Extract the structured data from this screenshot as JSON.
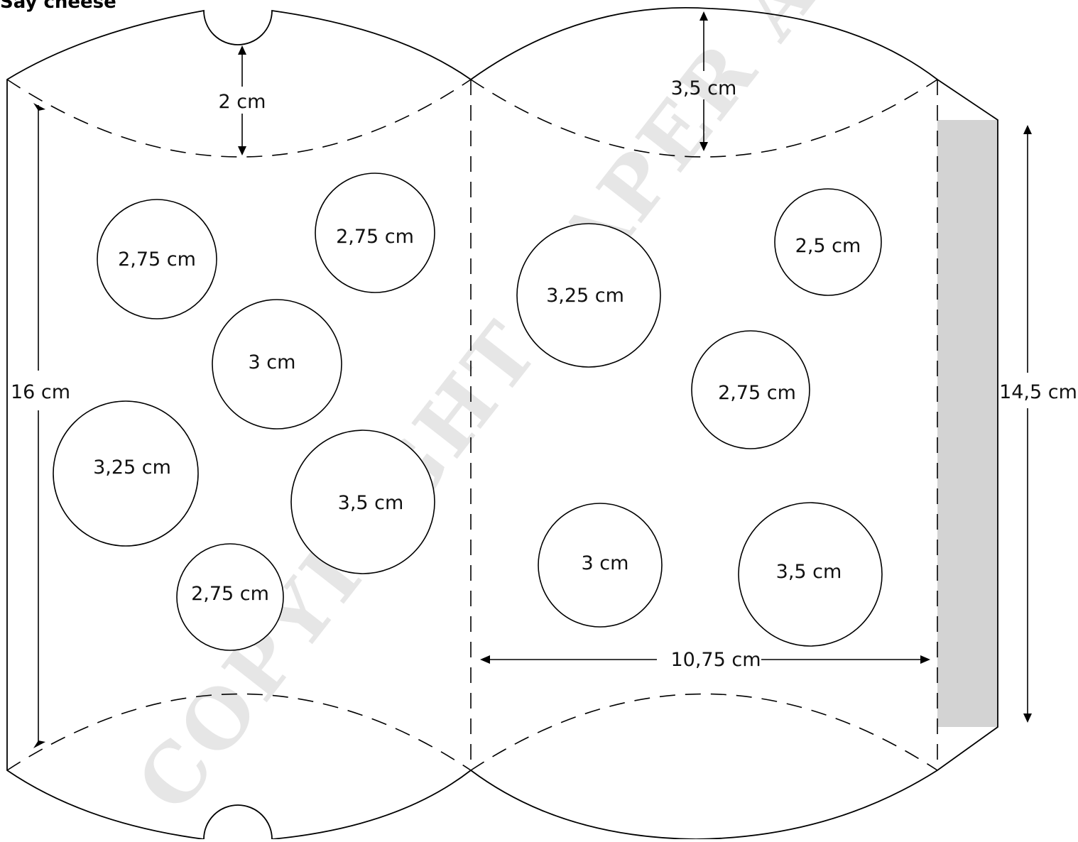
{
  "title": "Say cheese",
  "watermark": "COPYRIGHT PAPER AND PICTURES",
  "colors": {
    "glue_tab": "#d3d3d3",
    "line": "#000000",
    "watermark": "#e6e6e6"
  },
  "dimensions": {
    "top_tab_left": "2 cm",
    "top_tab_right": "3,5 cm",
    "height_left": "16 cm",
    "height_right": "14,5 cm",
    "panel_width": "10,75 cm"
  },
  "holes_left": [
    {
      "label": "2,75 cm"
    },
    {
      "label": "2,75 cm"
    },
    {
      "label": "3 cm"
    },
    {
      "label": "3,25 cm"
    },
    {
      "label": "3,5 cm"
    },
    {
      "label": "2,75 cm"
    }
  ],
  "holes_right": [
    {
      "label": "3,25 cm"
    },
    {
      "label": "2,5 cm"
    },
    {
      "label": "2,75 cm"
    },
    {
      "label": "3 cm"
    },
    {
      "label": "3,5 cm"
    }
  ]
}
